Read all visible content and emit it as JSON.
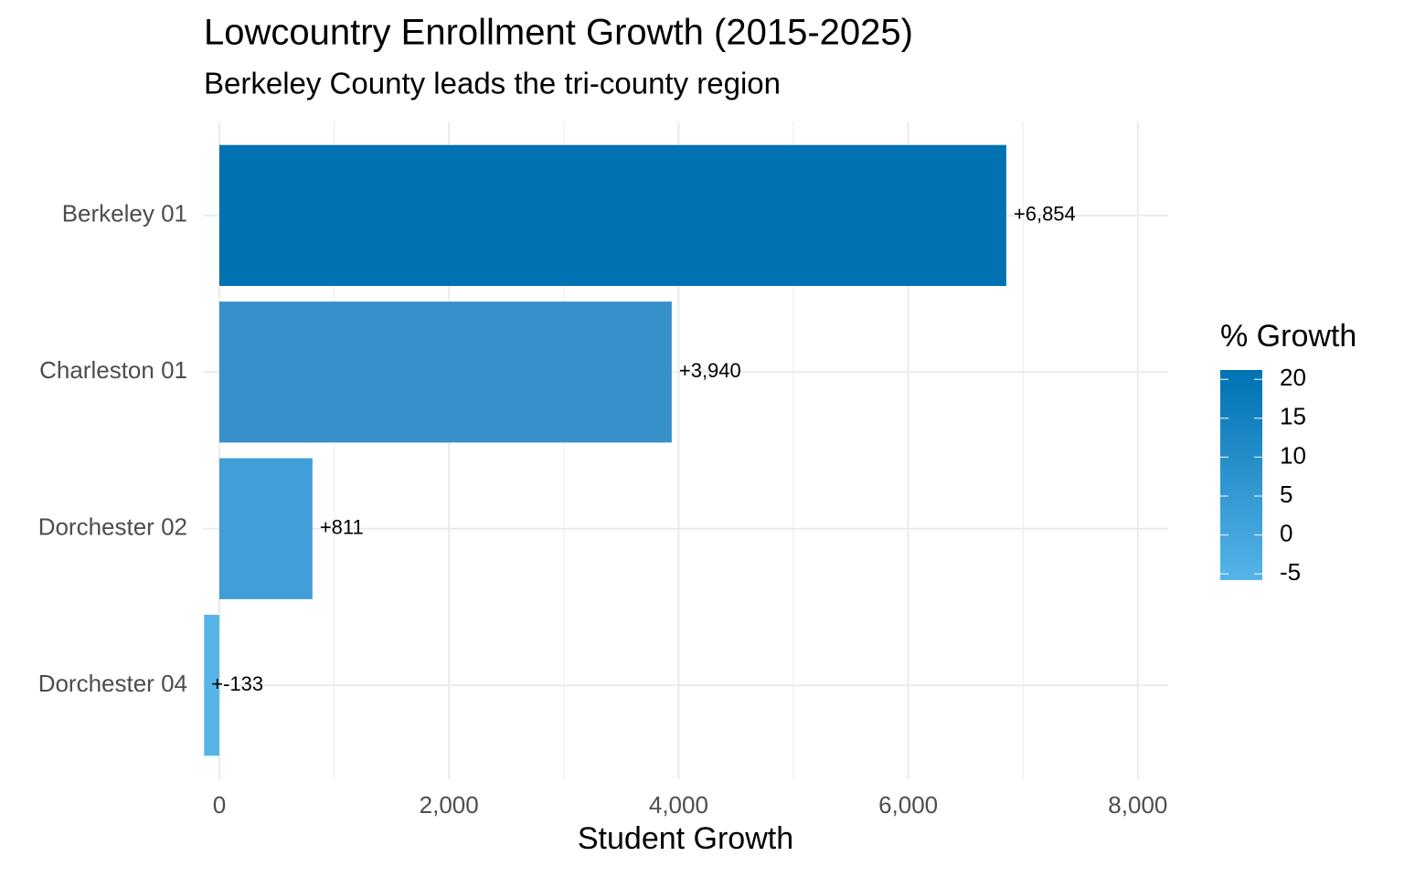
{
  "chart_data": {
    "type": "bar",
    "orientation": "horizontal",
    "title": "Lowcountry Enrollment Growth (2015-2025)",
    "subtitle": "Berkeley County leads the tri-county region",
    "x_label": "Student Growth",
    "categories": [
      "Berkeley 01",
      "Charleston 01",
      "Dorchester 02",
      "Dorchester 04"
    ],
    "values": [
      6854,
      3940,
      811,
      -133
    ],
    "value_labels": [
      "+6,854",
      "+3,940",
      "+811",
      "+-133"
    ],
    "colors": [
      "#0072b2",
      "#3690c9",
      "#419ed6",
      "#56b4e9"
    ],
    "xlim": [
      -143,
      8264
    ],
    "xticks": [
      0,
      {
        "value": 2000,
        "label": "2,000"
      },
      {
        "value": 4000,
        "label": "4,000"
      },
      {
        "value": 6000,
        "label": "6,000"
      },
      {
        "value": 8000,
        "label": "8,000"
      }
    ],
    "grid": true,
    "legend": {
      "title": "% Growth",
      "lim": [
        -5.8,
        21.2
      ],
      "ticks": [
        -5,
        0,
        5,
        10,
        15,
        20
      ],
      "low": "#56b4e9",
      "high": "#0072b2",
      "position": "right"
    }
  }
}
